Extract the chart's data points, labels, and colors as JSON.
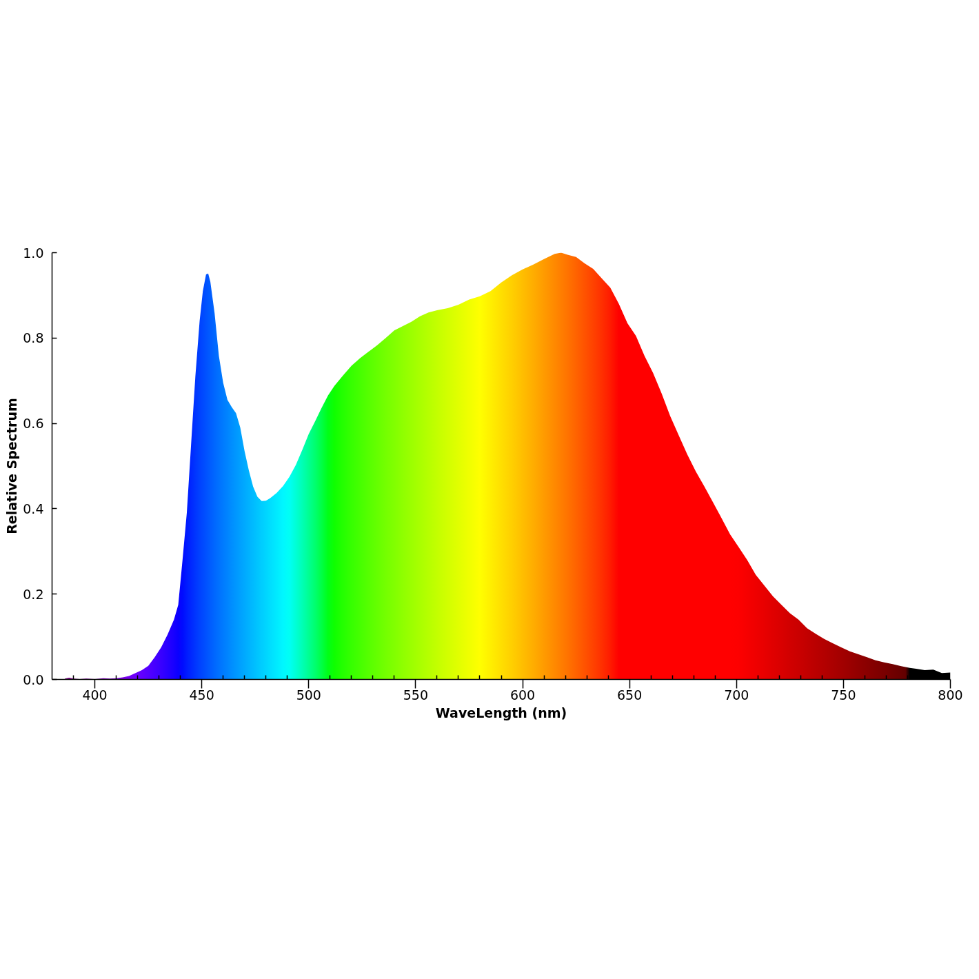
{
  "chart_data": {
    "type": "area",
    "xlabel": "WaveLength (nm)",
    "ylabel": "Relative Spectrum",
    "xlim": [
      380,
      800
    ],
    "ylim": [
      0,
      1.0
    ],
    "xticks": [
      {
        "value": 390,
        "label": null
      },
      400,
      {
        "value": 410,
        "label": null
      },
      {
        "value": 420,
        "label": null
      },
      {
        "value": 430,
        "label": null
      },
      {
        "value": 440,
        "label": null
      },
      450,
      {
        "value": 460,
        "label": null
      },
      {
        "value": 470,
        "label": null
      },
      {
        "value": 480,
        "label": null
      },
      {
        "value": 490,
        "label": null
      },
      500,
      {
        "value": 510,
        "label": null
      },
      {
        "value": 520,
        "label": null
      },
      {
        "value": 530,
        "label": null
      },
      {
        "value": 540,
        "label": null
      },
      550,
      {
        "value": 560,
        "label": null
      },
      {
        "value": 570,
        "label": null
      },
      {
        "value": 580,
        "label": null
      },
      {
        "value": 590,
        "label": null
      },
      600,
      {
        "value": 610,
        "label": null
      },
      {
        "value": 620,
        "label": null
      },
      {
        "value": 630,
        "label": null
      },
      {
        "value": 640,
        "label": null
      },
      650,
      {
        "value": 660,
        "label": null
      },
      {
        "value": 670,
        "label": null
      },
      {
        "value": 680,
        "label": null
      },
      {
        "value": 690,
        "label": null
      },
      700,
      {
        "value": 710,
        "label": null
      },
      {
        "value": 720,
        "label": null
      },
      {
        "value": 730,
        "label": null
      },
      {
        "value": 740,
        "label": null
      },
      750,
      {
        "value": 760,
        "label": null
      },
      {
        "value": 770,
        "label": null
      },
      {
        "value": 780,
        "label": null
      },
      {
        "value": 790,
        "label": null
      },
      800
    ],
    "yticks": [
      {
        "value": 0,
        "label": "0.0"
      },
      0.2,
      0.4,
      0.6,
      0.8,
      {
        "value": 1,
        "label": "1.0"
      }
    ],
    "x": [
      386,
      388,
      390,
      393,
      396,
      400,
      404,
      407,
      410,
      413,
      416,
      419,
      422,
      425,
      428,
      431,
      434,
      437,
      439,
      441,
      443,
      445,
      447,
      449,
      450.5,
      452,
      453,
      454,
      456,
      458,
      460,
      462,
      464,
      466,
      468,
      470,
      472,
      474,
      476,
      478,
      480,
      482,
      485,
      488,
      491,
      494,
      497,
      500,
      503,
      506,
      509,
      512,
      516,
      520,
      524,
      528,
      532,
      536,
      540,
      544,
      548,
      552,
      556,
      560,
      565,
      570,
      575,
      580,
      585,
      590,
      595,
      600,
      605,
      610,
      615,
      618,
      621,
      625,
      629,
      633,
      637,
      641,
      645,
      649,
      653,
      657,
      661,
      665,
      669,
      673,
      677,
      681,
      685,
      689,
      693,
      697,
      701,
      705,
      709,
      713,
      717,
      721,
      725,
      729,
      733,
      737,
      741,
      745,
      749,
      753,
      757,
      761,
      765,
      769,
      773,
      777,
      779,
      781,
      784,
      788,
      792,
      796,
      800
    ],
    "values": [
      0.002,
      0.004,
      0.002,
      0.001,
      0.002,
      0.001,
      0.003,
      0.002,
      0.003,
      0.005,
      0.008,
      0.015,
      0.022,
      0.032,
      0.052,
      0.075,
      0.105,
      0.14,
      0.175,
      0.28,
      0.39,
      0.55,
      0.71,
      0.84,
      0.91,
      0.949,
      0.951,
      0.932,
      0.858,
      0.758,
      0.695,
      0.655,
      0.638,
      0.624,
      0.59,
      0.535,
      0.49,
      0.452,
      0.428,
      0.418,
      0.419,
      0.425,
      0.437,
      0.453,
      0.475,
      0.503,
      0.538,
      0.575,
      0.605,
      0.636,
      0.665,
      0.688,
      0.712,
      0.735,
      0.753,
      0.768,
      0.783,
      0.8,
      0.818,
      0.828,
      0.838,
      0.851,
      0.86,
      0.865,
      0.87,
      0.878,
      0.89,
      0.898,
      0.91,
      0.93,
      0.947,
      0.961,
      0.972,
      0.985,
      0.997,
      1.0,
      0.995,
      0.99,
      0.975,
      0.962,
      0.94,
      0.918,
      0.88,
      0.835,
      0.805,
      0.758,
      0.718,
      0.67,
      0.617,
      0.572,
      0.527,
      0.487,
      0.452,
      0.415,
      0.378,
      0.34,
      0.31,
      0.28,
      0.245,
      0.22,
      0.195,
      0.175,
      0.155,
      0.14,
      0.12,
      0.107,
      0.095,
      0.085,
      0.075,
      0.066,
      0.059,
      0.052,
      0.045,
      0.04,
      0.036,
      0.031,
      0.029,
      0.027,
      0.025,
      0.022,
      0.023,
      0.015,
      0.016
    ],
    "colors": [
      "#72007a",
      "#760084",
      "#7a008d",
      "#7e0099",
      "#8100a5",
      "#8300b5",
      "#8300c4",
      "#8100cf",
      "#7e00db",
      "#7a00e6",
      "#7400f1",
      "#6d00fb",
      "#6100ff",
      "#5400ff",
      "#4600ff",
      "#3800ff",
      "#2800ff",
      "#1700ff",
      "#0a00ff",
      "#000bff",
      "#001bff",
      "#0028ff",
      "#0035ff",
      "#0041ff",
      "#0049ff",
      "#0051ff",
      "#0057ff",
      "#005cff",
      "#0067ff",
      "#0071ff",
      "#007bff",
      "#0084ff",
      "#008eff",
      "#0097ff",
      "#00a0ff",
      "#00a9ff",
      "#00b2ff",
      "#00bbff",
      "#00c4ff",
      "#00cdff",
      "#00d5ff",
      "#00deff",
      "#00eaff",
      "#00f7ff",
      "#00fff5",
      "#00ffd5",
      "#00ffb5",
      "#00ff92",
      "#00ff6e",
      "#00ff46",
      "#00ff17",
      "#0fff00",
      "#24ff00",
      "#36ff00",
      "#46ff00",
      "#56ff00",
      "#65ff00",
      "#74ff00",
      "#81ff00",
      "#8fff00",
      "#9cff00",
      "#a9ff00",
      "#b6ff00",
      "#c3ff00",
      "#d2ff00",
      "#e1ff00",
      "#f0ff00",
      "#ffff00",
      "#ffef00",
      "#ffdf00",
      "#ffcf00",
      "#ffbe00",
      "#ffad00",
      "#ff9b00",
      "#ff8900",
      "#ff7e00",
      "#ff7300",
      "#ff6300",
      "#ff5300",
      "#ff4200",
      "#ff3000",
      "#ff1b00",
      "#ff0000",
      "#ff0000",
      "#ff0000",
      "#ff0000",
      "#ff0000",
      "#ff0000",
      "#ff0000",
      "#ff0000",
      "#ff0000",
      "#ff0000",
      "#ff0000",
      "#ff0000",
      "#ff0000",
      "#ff0000",
      "#fd0000",
      "#f60000",
      "#ef0000",
      "#e80000",
      "#e00000",
      "#d90000",
      "#d10000",
      "#ca0000",
      "#c20000",
      "#ba0000",
      "#b30000",
      "#ab0000",
      "#a30000",
      "#9b0000",
      "#920000",
      "#8a0000",
      "#820000",
      "#7a0000",
      "#710000",
      "#680000",
      "#630000",
      "#000000",
      "#000000",
      "#000000",
      "#000000",
      "#000000",
      "#000000"
    ]
  }
}
